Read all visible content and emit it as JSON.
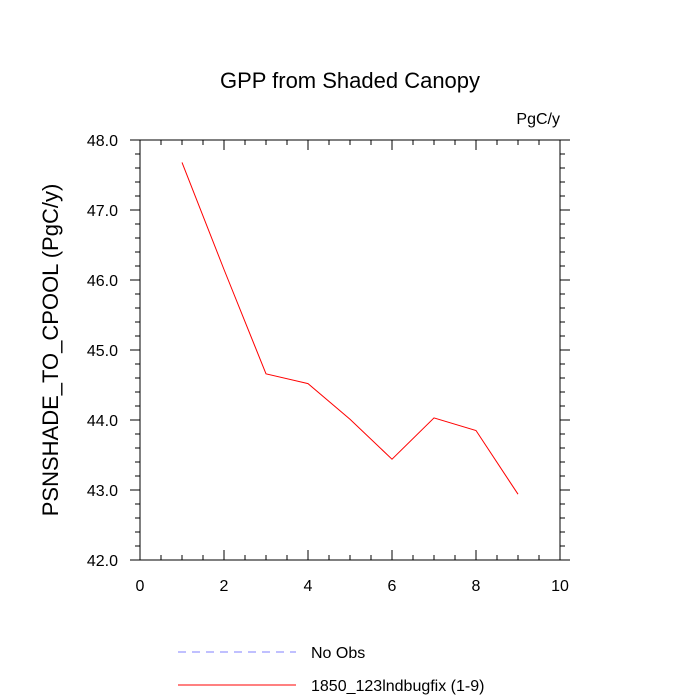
{
  "chart_data": {
    "type": "line",
    "title": "GPP from Shaded Canopy",
    "units_label": "PgC/y",
    "xlabel": "",
    "ylabel": "PSNSHADE_TO_CPOOL  (PgC/y)",
    "xlim": [
      0,
      10
    ],
    "ylim": [
      42.0,
      48.0
    ],
    "x_ticks": [
      0,
      2,
      4,
      6,
      8,
      10
    ],
    "x_tick_labels": [
      "0",
      "2",
      "4",
      "6",
      "8",
      "10"
    ],
    "y_ticks": [
      42.0,
      43.0,
      44.0,
      45.0,
      46.0,
      47.0,
      48.0
    ],
    "y_tick_labels": [
      "42.0",
      "43.0",
      "44.0",
      "45.0",
      "46.0",
      "47.0",
      "48.0"
    ],
    "grid": false,
    "legend_position": "bottom",
    "series": [
      {
        "name": "No Obs",
        "color": "#8080ff",
        "dash": "dashed",
        "x": [],
        "values": []
      },
      {
        "name": "1850_123lndbugfix (1-9)",
        "color": "#ff0000",
        "dash": "solid",
        "x": [
          1,
          2,
          3,
          4,
          5,
          6,
          7,
          8,
          9
        ],
        "values": [
          47.68,
          46.15,
          44.66,
          44.52,
          44.01,
          43.44,
          44.03,
          43.85,
          42.94
        ]
      }
    ]
  }
}
